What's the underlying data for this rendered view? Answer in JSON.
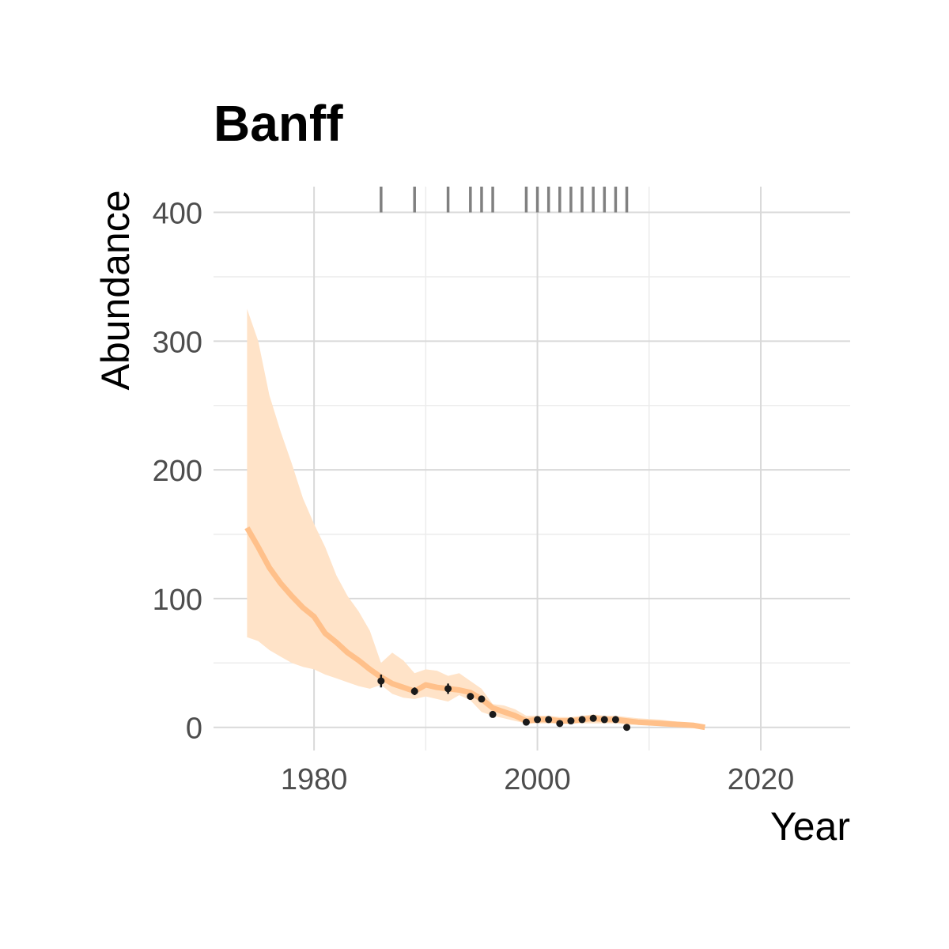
{
  "chart_data": {
    "type": "line",
    "title": "Banff",
    "xlabel": "Year",
    "ylabel": "Abundance",
    "xlim": [
      1971,
      2028
    ],
    "ylim": [
      -18,
      420
    ],
    "x_ticks": [
      1980,
      2000,
      2020
    ],
    "x_tick_labels": [
      "1980",
      "2000",
      "2020"
    ],
    "x_minor_ticks": [
      1970,
      1990,
      2010
    ],
    "y_ticks": [
      0,
      100,
      200,
      300,
      400
    ],
    "y_tick_labels": [
      "0",
      "100",
      "200",
      "300",
      "400"
    ],
    "y_minor_ticks": [
      50,
      150,
      250,
      350
    ],
    "grid": true,
    "legend": "none",
    "colors": {
      "trend_line": "#ffc08a",
      "ribbon": "#ffe3c8",
      "points": "#1a1a1a",
      "rug": "#808080",
      "grid": "#d9d9d9"
    },
    "series": [
      {
        "kind": "line",
        "x": [
          1974,
          1975,
          1976,
          1977,
          1978,
          1979,
          1980,
          1981,
          1982,
          1983,
          1984,
          1985,
          1986,
          1987,
          1988,
          1989,
          1990,
          1991,
          1992,
          1993,
          1994,
          1995,
          1996,
          1997,
          1998,
          1999,
          2000,
          2001,
          2002,
          2003,
          2004,
          2005,
          2006,
          2007,
          2008,
          2009,
          2010,
          2011,
          2012,
          2013,
          2014,
          2015
        ],
        "y": [
          155,
          140,
          124,
          112,
          102,
          93,
          86,
          73,
          66,
          58,
          52,
          45,
          39,
          34,
          31,
          28,
          33,
          31,
          30,
          29,
          27,
          22,
          15,
          12,
          9,
          5,
          6,
          6,
          5,
          5,
          6,
          7,
          6,
          6,
          5,
          4,
          3.5,
          3,
          2.5,
          2,
          1.5,
          0
        ]
      },
      {
        "kind": "ribbon",
        "x": [
          1974,
          1975,
          1976,
          1977,
          1978,
          1979,
          1980,
          1981,
          1982,
          1983,
          1984,
          1985,
          1986,
          1987,
          1988,
          1989,
          1990,
          1991,
          1992,
          1993,
          1994,
          1995,
          1996,
          1997,
          1998,
          1999,
          2000,
          2001,
          2002,
          2003,
          2004,
          2005,
          2006,
          2007,
          2008,
          2009,
          2010,
          2011,
          2012,
          2013,
          2014,
          2015
        ],
        "lower": [
          70,
          67,
          60,
          55,
          50,
          47,
          45,
          41,
          38,
          35,
          32,
          30,
          33,
          26,
          23,
          22,
          24,
          22,
          20,
          25,
          21,
          12,
          9,
          7,
          5,
          3,
          3,
          3,
          3,
          3,
          3,
          3,
          3,
          3,
          2,
          2,
          1.5,
          1,
          1,
          1,
          0.5,
          0
        ],
        "upper": [
          325,
          300,
          258,
          230,
          205,
          178,
          158,
          140,
          118,
          102,
          90,
          75,
          50,
          58,
          52,
          42,
          45,
          44,
          40,
          42,
          36,
          30,
          18,
          17,
          14,
          9,
          9,
          9,
          8,
          8,
          9,
          10,
          9,
          9,
          8,
          7,
          6.5,
          6,
          5,
          4,
          3,
          2
        ]
      },
      {
        "kind": "points",
        "x": [
          1986,
          1989,
          1992,
          1994,
          1995,
          1996,
          1999,
          2000,
          2001,
          2002,
          2003,
          2004,
          2005,
          2006,
          2007,
          2008
        ],
        "y": [
          36,
          28,
          30,
          24,
          22,
          10,
          4,
          6,
          6,
          3,
          5,
          6,
          7,
          6,
          6,
          0
        ],
        "err": [
          5,
          3,
          4,
          2,
          2,
          2,
          1.5,
          1.5,
          1.5,
          1,
          1.5,
          1.5,
          1.5,
          1.5,
          1.5,
          1
        ]
      },
      {
        "kind": "rug",
        "x": [
          1986,
          1989,
          1992,
          1994,
          1995,
          1996,
          1999,
          2000,
          2001,
          2002,
          2003,
          2004,
          2005,
          2006,
          2007,
          2008
        ],
        "y_from": 400,
        "y_to": 420
      }
    ]
  }
}
